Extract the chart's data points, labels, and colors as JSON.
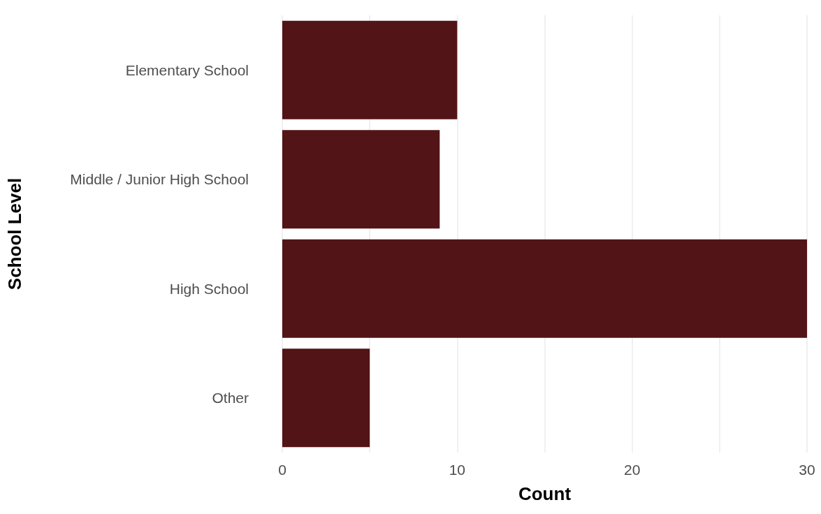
{
  "chart_data": {
    "type": "bar",
    "orientation": "horizontal",
    "xlabel": "Count",
    "ylabel": "School Level",
    "categories": [
      "Elementary School",
      "Middle / Junior High School",
      "High School",
      "Other"
    ],
    "values": [
      10,
      9,
      30,
      5
    ],
    "color": "#521417",
    "xlim": [
      0,
      30
    ],
    "xticks": [
      0,
      {
        "value": 5,
        "label": null
      },
      10,
      {
        "value": 15,
        "label": null
      },
      20,
      {
        "value": 25,
        "label": null
      },
      30
    ],
    "grid": "x"
  }
}
